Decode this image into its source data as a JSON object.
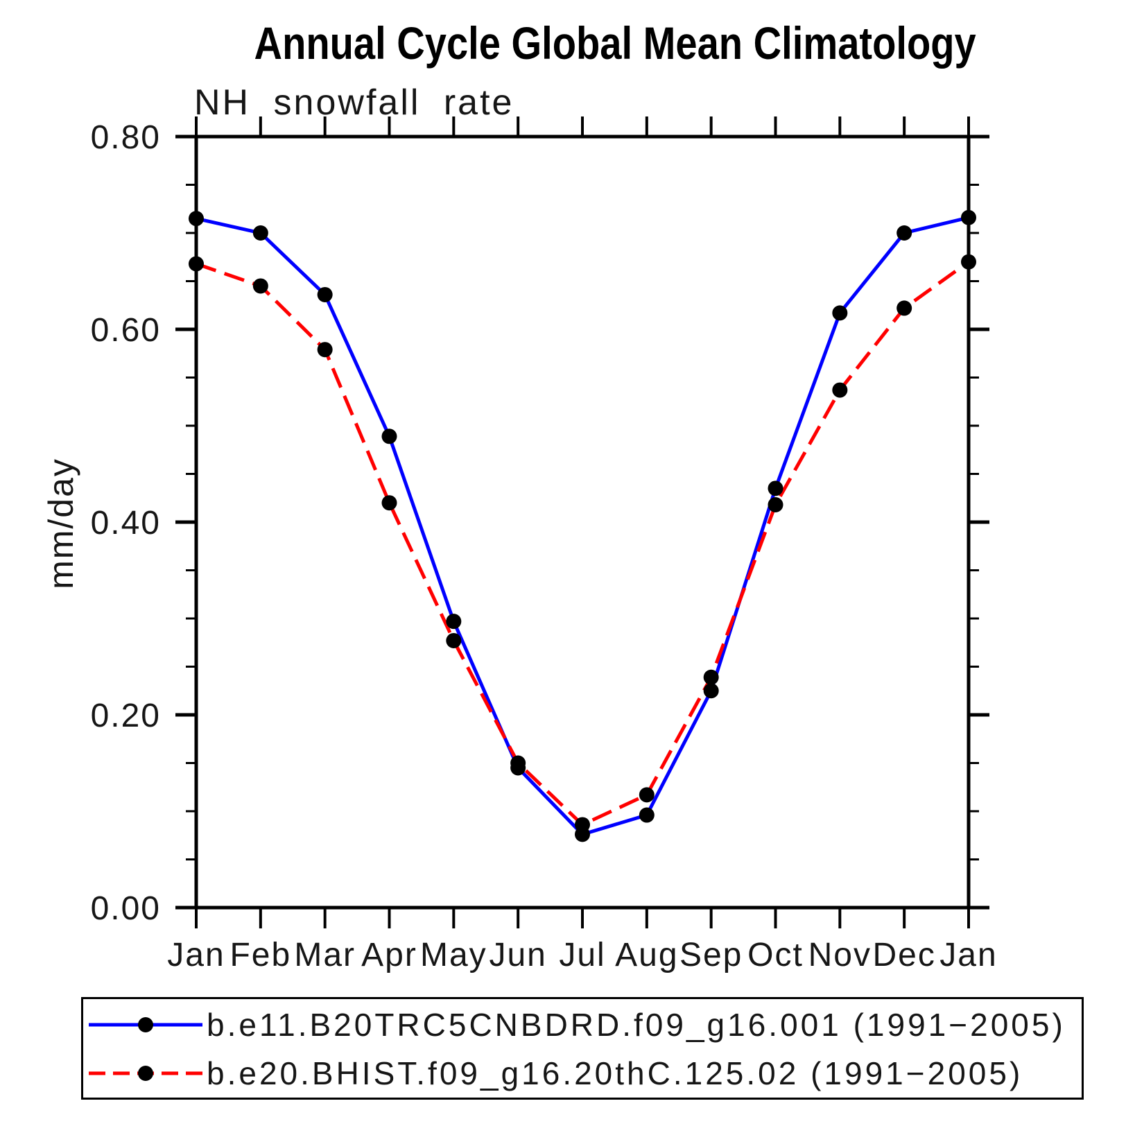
{
  "chart_data": {
    "type": "line",
    "title": "Annual Cycle Global Mean Climatology",
    "subtitle": "NH snowfall rate",
    "ylabel": "mm/day",
    "ylim": [
      0.0,
      0.8
    ],
    "ytick_major_step": 0.2,
    "ytick_minor_step": 0.05,
    "ytick_labels": [
      "0.00",
      "0.20",
      "0.40",
      "0.60",
      "0.80"
    ],
    "categories": [
      "Jan",
      "Feb",
      "Mar",
      "Apr",
      "May",
      "Jun",
      "Jul",
      "Aug",
      "Sep",
      "Oct",
      "Nov",
      "Dec",
      "Jan"
    ],
    "grid": false,
    "legend_position": "bottom",
    "marker": "filled-circle",
    "marker_color": "#000000",
    "axis_color": "#000000",
    "series": [
      {
        "name": "b.e11.B20TRC5CNBDRD.f09_g16.001 (1991−2005)",
        "color": "#0000ff",
        "line_style": "solid",
        "values": [
          0.715,
          0.7,
          0.636,
          0.489,
          0.297,
          0.145,
          0.076,
          0.096,
          0.225,
          0.435,
          0.617,
          0.7,
          0.716
        ]
      },
      {
        "name": "b.e20.BHIST.f09_g16.20thC.125.02 (1991−2005)",
        "color": "#ff0000",
        "line_style": "dashed",
        "values": [
          0.668,
          0.645,
          0.579,
          0.42,
          0.277,
          0.15,
          0.086,
          0.117,
          0.239,
          0.418,
          0.537,
          0.622,
          0.67
        ]
      }
    ]
  }
}
